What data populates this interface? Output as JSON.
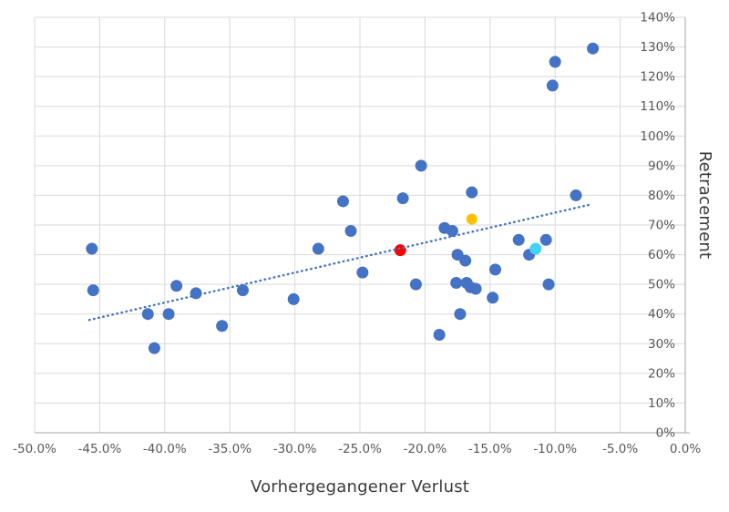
{
  "chart_data": {
    "type": "scatter",
    "title": "",
    "xlabel": "Vorhergegangener Verlust",
    "ylabel": "Retracement",
    "xlim": [
      -50,
      0
    ],
    "ylim": [
      0,
      140
    ],
    "grid": true,
    "legend": "none",
    "x_ticks": [
      -50,
      -45,
      -40,
      -35,
      -30,
      -25,
      -20,
      -15,
      -10,
      -5,
      0
    ],
    "x_tick_labels": [
      "-50.0%",
      "-45.0%",
      "-40.0%",
      "-35.0%",
      "-30.0%",
      "-25.0%",
      "-20.0%",
      "-15.0%",
      "-10.0%",
      "-5.0%",
      "0.0%"
    ],
    "y_ticks": [
      0,
      10,
      20,
      30,
      40,
      50,
      60,
      70,
      80,
      90,
      100,
      110,
      120,
      130,
      140
    ],
    "y_tick_labels": [
      "0%",
      "10%",
      "20%",
      "30%",
      "40%",
      "50%",
      "60%",
      "70%",
      "80%",
      "90%",
      "100%",
      "110%",
      "120%",
      "130%",
      "140%"
    ],
    "series": [
      {
        "name": "observations",
        "color": "#4472C4",
        "marker_radius": 6.5,
        "points": [
          [
            -45.6,
            62
          ],
          [
            -45.5,
            48
          ],
          [
            -41.3,
            40
          ],
          [
            -40.8,
            28.5
          ],
          [
            -39.7,
            40
          ],
          [
            -39.1,
            49.5
          ],
          [
            -37.6,
            47
          ],
          [
            -35.6,
            36
          ],
          [
            -34.0,
            48
          ],
          [
            -30.1,
            45
          ],
          [
            -28.2,
            62
          ],
          [
            -26.3,
            78
          ],
          [
            -25.7,
            68
          ],
          [
            -24.8,
            54
          ],
          [
            -21.7,
            79
          ],
          [
            -20.7,
            50
          ],
          [
            -20.3,
            90
          ],
          [
            -18.9,
            33
          ],
          [
            -18.5,
            69
          ],
          [
            -17.9,
            68
          ],
          [
            -17.6,
            50.5
          ],
          [
            -17.5,
            60
          ],
          [
            -17.3,
            40
          ],
          [
            -16.9,
            58
          ],
          [
            -16.8,
            50.5
          ],
          [
            -16.5,
            49
          ],
          [
            -16.4,
            81
          ],
          [
            -16.1,
            48.5
          ],
          [
            -14.8,
            45.5
          ],
          [
            -14.6,
            55
          ],
          [
            -12.8,
            65
          ],
          [
            -12.0,
            60
          ],
          [
            -10.7,
            65
          ],
          [
            -10.5,
            50
          ],
          [
            -10.2,
            117
          ],
          [
            -10.0,
            125
          ],
          [
            -8.4,
            80
          ],
          [
            -7.1,
            129.5
          ]
        ]
      },
      {
        "name": "highlight-red",
        "color": "#FF0000",
        "marker_radius": 6.5,
        "points": [
          [
            -21.9,
            61.5
          ]
        ]
      },
      {
        "name": "highlight-gold",
        "color": "#FFC000",
        "marker_radius": 6,
        "points": [
          [
            -16.4,
            72
          ]
        ]
      },
      {
        "name": "highlight-cyan",
        "color": "#3FD4F4",
        "marker_radius": 6.5,
        "points": [
          [
            -11.5,
            62
          ]
        ]
      }
    ],
    "trendline": {
      "type": "linear",
      "style": "dotted",
      "color": "#4472C4",
      "x_start": -45.8,
      "y_start": 38,
      "x_end": -7.2,
      "y_end": 77
    },
    "colors": {
      "grid": "#D9D9D9",
      "axis_line": "#A6A6A6",
      "tick_text": "#595959",
      "title_text": "#3B3B3B",
      "background": "#FFFFFF"
    }
  }
}
